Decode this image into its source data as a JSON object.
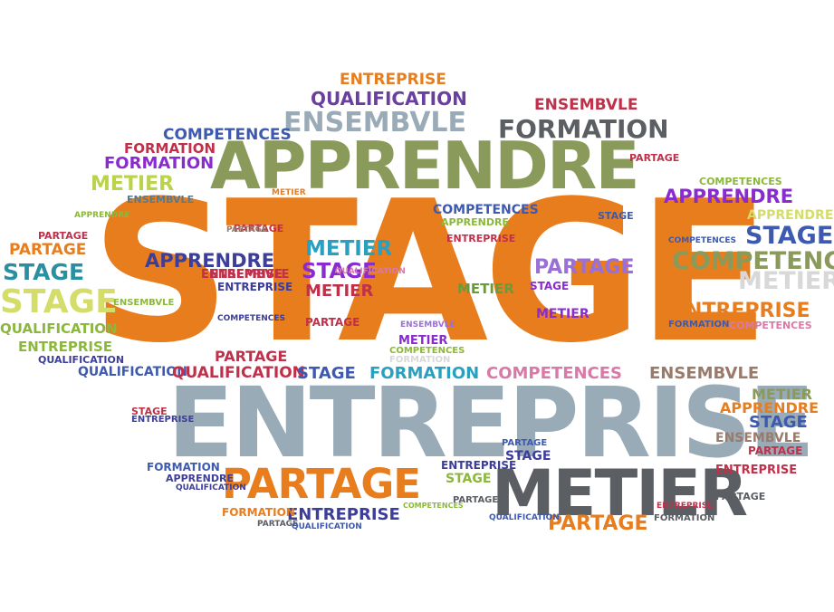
{
  "words": [
    {
      "text": "STAGE",
      "color": "#e87d1e"
    },
    {
      "text": "ENTREPRISE",
      "color": "#9aabb8"
    },
    {
      "text": "APPRENDRE",
      "color": "#8a9a5b"
    },
    {
      "text": "METIER",
      "color": "#5b5e62"
    },
    {
      "text": "PARTAGE",
      "color": "#e87d1e"
    },
    {
      "text": "ENSEMBVLE",
      "color": "#9aabb8"
    },
    {
      "text": "FORMATION",
      "color": "#5b5e62"
    },
    {
      "text": "QUALIFICATION",
      "color": "#6a3fa0"
    },
    {
      "text": "ENTREPRISE",
      "color": "#e87d1e"
    },
    {
      "text": "ENSEMBVLE",
      "color": "#c0304a"
    },
    {
      "text": "COMPETENCES",
      "color": "#3d5ab0"
    },
    {
      "text": "FORMATION",
      "color": "#c0304a"
    },
    {
      "text": "FORMATION",
      "color": "#8a2bd0"
    },
    {
      "text": "METIER",
      "color": "#b9d34a"
    },
    {
      "text": "ENSEMBVLE",
      "color": "#5a7a8a"
    },
    {
      "text": "PARTAGE",
      "color": "#e87d1e"
    },
    {
      "text": "STAGE",
      "color": "#2a8fa0"
    },
    {
      "text": "STAGE",
      "color": "#d4dd6a"
    },
    {
      "text": "QUALIFICATION",
      "color": "#8bb83a"
    },
    {
      "text": "ENTREPRISE",
      "color": "#8bb83a"
    },
    {
      "text": "QUALIFICATION",
      "color": "#3d3d9a"
    },
    {
      "text": "QUALIFICATION",
      "color": "#3d5ab0"
    },
    {
      "text": "APPRENDRE",
      "color": "#3d3d9a"
    },
    {
      "text": "METIER",
      "color": "#2aa0c0"
    },
    {
      "text": "STAGE",
      "color": "#8a2bd0"
    },
    {
      "text": "METIER",
      "color": "#c0304a"
    },
    {
      "text": "PARTAGE",
      "color": "#c0304a"
    },
    {
      "text": "QUALIFICATION",
      "color": "#c0304a"
    },
    {
      "text": "STAGE",
      "color": "#3d5ab0"
    },
    {
      "text": "FORMATION",
      "color": "#2aa0c0"
    },
    {
      "text": "COMPETENCES",
      "color": "#d87aa8"
    },
    {
      "text": "ENSEMBVLE",
      "color": "#9a7a6a"
    },
    {
      "text": "COMPETENCES",
      "color": "#8bb83a"
    },
    {
      "text": "COMPETENCES",
      "color": "#8a9a5b"
    },
    {
      "text": "APPRENDRE",
      "color": "#8a2bd0"
    },
    {
      "text": "APPRENDRE",
      "color": "#d4dd6a"
    },
    {
      "text": "STAGE",
      "color": "#3d5ab0"
    },
    {
      "text": "METIER",
      "color": "#d8d8d8"
    },
    {
      "text": "ENTREPRISE",
      "color": "#e87d1e"
    },
    {
      "text": "PARTAGE",
      "color": "#9a70d8"
    },
    {
      "text": "COMPETENCES",
      "color": "#3d5ab0"
    },
    {
      "text": "PARTAGE",
      "color": "#c0304a"
    },
    {
      "text": "ENTREPRISE",
      "color": "#c0304a"
    },
    {
      "text": "METIER",
      "color": "#6a9a3a"
    },
    {
      "text": "ENTREPRISE",
      "color": "#c0304a"
    },
    {
      "text": "METIER",
      "color": "#8a9a5b"
    },
    {
      "text": "APPRENDRE",
      "color": "#e87d1e"
    },
    {
      "text": "STAGE",
      "color": "#3d5ab0"
    },
    {
      "text": "ENSEMBVLE",
      "color": "#9a7a6a"
    },
    {
      "text": "PARTAGE",
      "color": "#c0304a"
    },
    {
      "text": "ENTREPRISE",
      "color": "#3d3d9a"
    },
    {
      "text": "PARTAGE",
      "color": "#e87d1e"
    },
    {
      "text": "ENTREPRISE",
      "color": "#3d3d9a"
    },
    {
      "text": "QUALIFICATION",
      "color": "#3d3d9a"
    },
    {
      "text": "FORMATION",
      "color": "#e87d1e"
    },
    {
      "text": "PARTAGE",
      "color": "#5b5e62"
    },
    {
      "text": "APPRENDRE",
      "color": "#3d3d9a"
    },
    {
      "text": "FORMATION",
      "color": "#3d5ab0"
    },
    {
      "text": "STAGE",
      "color": "#8bb83a"
    },
    {
      "text": "STAGE",
      "color": "#3d3d9a"
    },
    {
      "text": "QUALIFICATION",
      "color": "#d87aa8"
    },
    {
      "text": "ENSEMBVLE",
      "color": "#c0304a"
    },
    {
      "text": "ENTREPRISE",
      "color": "#3d3d9a"
    },
    {
      "text": "COMPETENCES",
      "color": "#3d3d9a"
    },
    {
      "text": "ENSEMBVLE",
      "color": "#9a70d8"
    },
    {
      "text": "STAGE",
      "color": "#3d5ab0"
    },
    {
      "text": "METIER",
      "color": "#8a2bd0"
    },
    {
      "text": "PARTAGE",
      "color": "#c0304a"
    },
    {
      "text": "FORMATION",
      "color": "#3d5ab0"
    },
    {
      "text": "COMPETENCES",
      "color": "#d87aa8"
    },
    {
      "text": "METIER",
      "color": "#8a2bd0"
    },
    {
      "text": "STAGE",
      "color": "#c0304a"
    },
    {
      "text": "APPRENDRE",
      "color": "#8bb83a"
    },
    {
      "text": "METIER",
      "color": "#e87d1e"
    },
    {
      "text": "PARTAGE",
      "color": "#9a7a6a"
    },
    {
      "text": "COMPETENCES",
      "color": "#3d5ab0"
    },
    {
      "text": "FORMATION",
      "color": "#5b5e62"
    },
    {
      "text": "ENTREPRISE",
      "color": "#3d3d9a"
    },
    {
      "text": "QUALIFICATION",
      "color": "#3d5ab0"
    },
    {
      "text": "PARTAGE",
      "color": "#c0304a"
    },
    {
      "text": "ENTREPRISE",
      "color": "#c0304a"
    },
    {
      "text": "PARTAGE",
      "color": "#5b5e62"
    },
    {
      "text": "ENSEMBVLE",
      "color": "#8bb83a"
    },
    {
      "text": "COMPETENCES",
      "color": "#8bb83a"
    },
    {
      "text": "STAGE",
      "color": "#8a2bd0"
    },
    {
      "text": "PARTAGE",
      "color": "#c0304a"
    },
    {
      "text": "PARTAGE",
      "color": "#5b5e62"
    },
    {
      "text": "FORMATION",
      "color": "#d8d8d8"
    },
    {
      "text": "ENTREPRISE",
      "color": "#c0304a"
    },
    {
      "text": "APPRENDRE",
      "color": "#8bb83a"
    },
    {
      "text": "QUALIFICATION",
      "color": "#3d5ab0"
    },
    {
      "text": "PARTAGE",
      "color": "#3d5ab0"
    },
    {
      "text": "COMPETENCES",
      "color": "#8bb83a"
    }
  ]
}
